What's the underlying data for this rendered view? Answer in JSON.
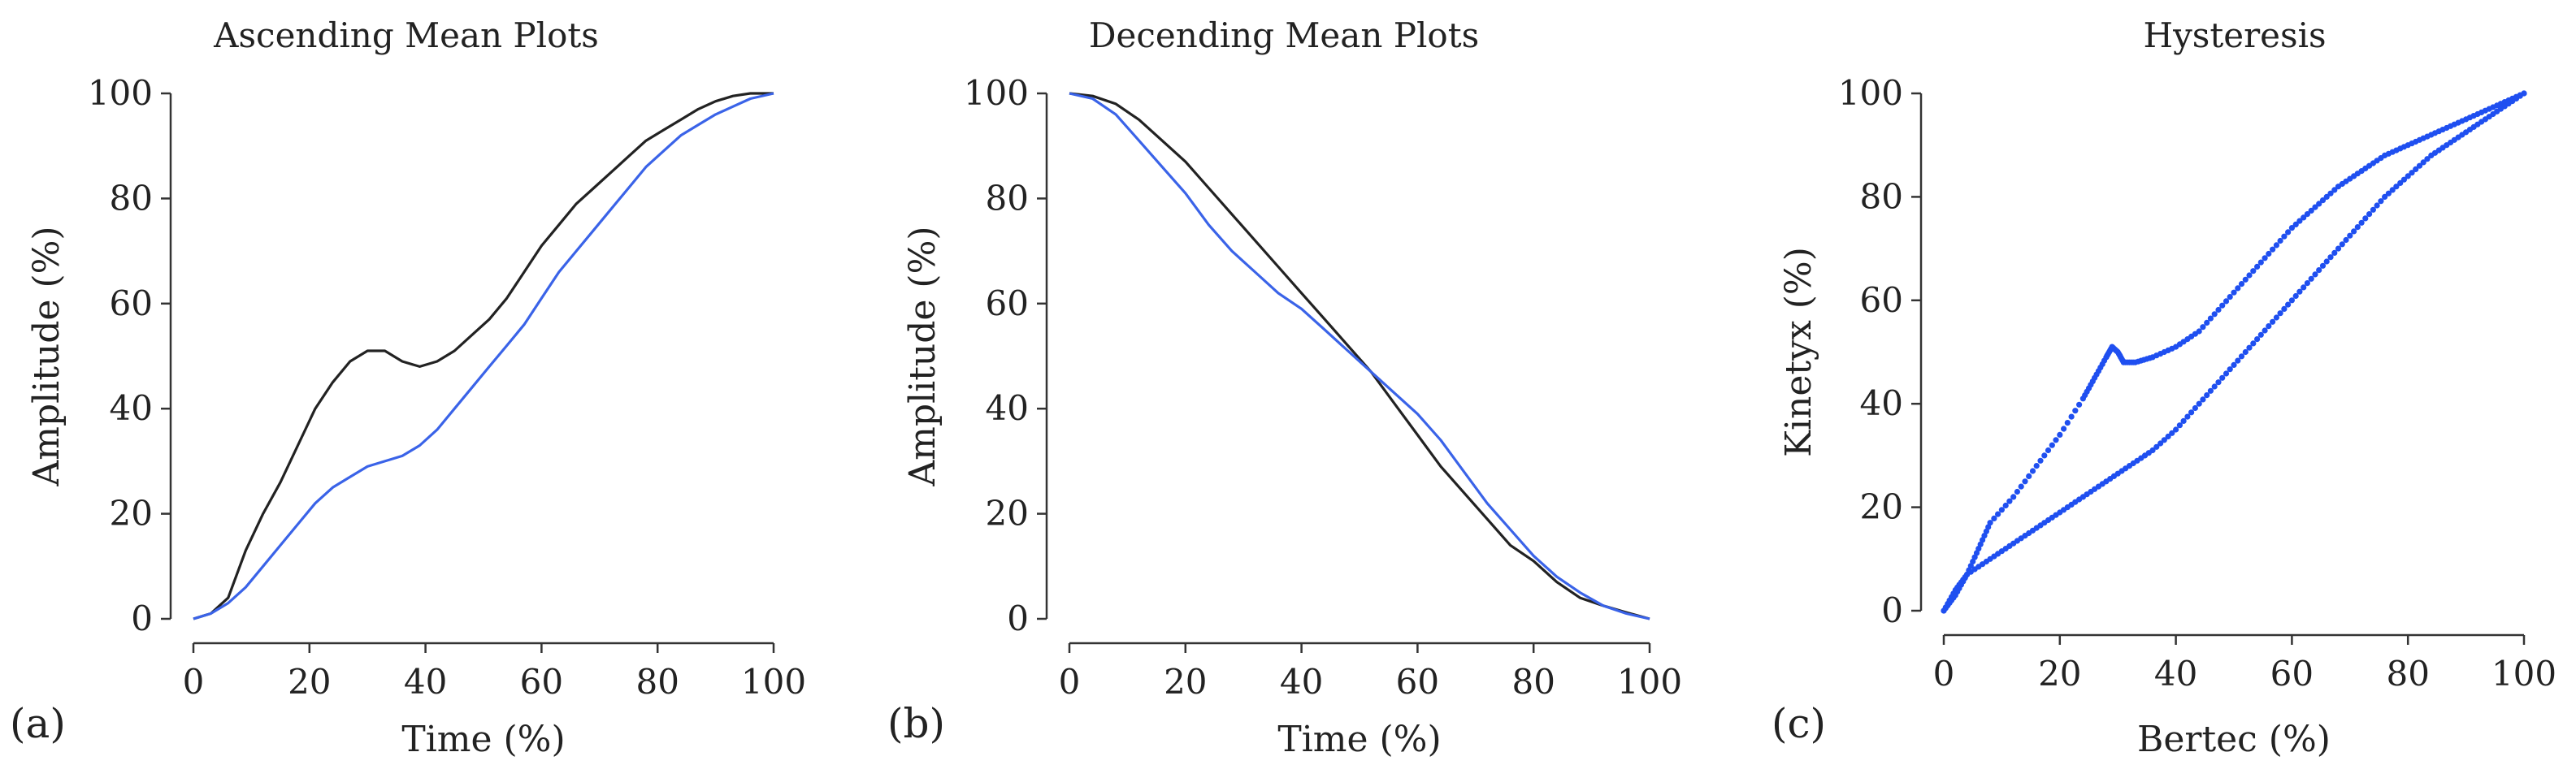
{
  "chart_data": [
    {
      "type": "line",
      "panel_label": "(a)",
      "title": "Ascending Mean Plots",
      "xlabel": "Time (%)",
      "ylabel": "Amplitude (%)",
      "xlim": [
        0,
        100
      ],
      "ylim": [
        0,
        100
      ],
      "xticks": [
        0,
        20,
        40,
        60,
        80,
        100
      ],
      "yticks": [
        0,
        20,
        40,
        60,
        80,
        100
      ],
      "x": [
        0,
        3,
        6,
        9,
        12,
        15,
        18,
        21,
        24,
        27,
        30,
        33,
        36,
        39,
        42,
        45,
        48,
        51,
        54,
        57,
        60,
        63,
        66,
        69,
        72,
        75,
        78,
        81,
        84,
        87,
        90,
        93,
        96,
        100
      ],
      "series": [
        {
          "name": "black",
          "color": "#222222",
          "values": [
            0,
            1,
            4,
            13,
            20,
            26,
            33,
            40,
            45,
            49,
            51,
            51,
            49,
            48,
            49,
            51,
            54,
            57,
            61,
            66,
            71,
            75,
            79,
            82,
            85,
            88,
            91,
            93,
            95,
            97,
            98.5,
            99.5,
            100,
            100
          ]
        },
        {
          "name": "blue",
          "color": "#3a63e8",
          "values": [
            0,
            1,
            3,
            6,
            10,
            14,
            18,
            22,
            25,
            27,
            29,
            30,
            31,
            33,
            36,
            40,
            44,
            48,
            52,
            56,
            61,
            66,
            70,
            74,
            78,
            82,
            86,
            89,
            92,
            94,
            96,
            97.5,
            99,
            100
          ]
        }
      ]
    },
    {
      "type": "line",
      "panel_label": "(b)",
      "title": "Decending Mean Plots",
      "xlabel": "Time (%)",
      "ylabel": "Amplitude (%)",
      "xlim": [
        0,
        100
      ],
      "ylim": [
        0,
        100
      ],
      "xticks": [
        0,
        20,
        40,
        60,
        80,
        100
      ],
      "yticks": [
        0,
        20,
        40,
        60,
        80,
        100
      ],
      "x": [
        0,
        4,
        8,
        12,
        16,
        20,
        24,
        28,
        32,
        36,
        40,
        44,
        48,
        52,
        56,
        60,
        64,
        68,
        72,
        76,
        80,
        84,
        88,
        92,
        96,
        100
      ],
      "series": [
        {
          "name": "black",
          "color": "#222222",
          "values": [
            100,
            99.5,
            98,
            95,
            91,
            87,
            82,
            77,
            72,
            67,
            62,
            57,
            52,
            47,
            41,
            35,
            29,
            24,
            19,
            14,
            11,
            7,
            4,
            2.5,
            1.2,
            0
          ]
        },
        {
          "name": "blue",
          "color": "#3a63e8",
          "values": [
            100,
            99,
            96,
            91,
            86,
            81,
            75,
            70,
            66,
            62,
            59,
            55,
            51,
            47,
            43,
            39,
            34,
            28,
            22,
            17,
            12,
            8,
            5,
            2.5,
            1,
            0
          ]
        }
      ]
    },
    {
      "type": "scatter",
      "panel_label": "(c)",
      "title": "Hysteresis",
      "xlabel": "Bertec (%)",
      "ylabel": "Kinetyx (%)",
      "xlim": [
        0,
        100
      ],
      "ylim": [
        0,
        100
      ],
      "xticks": [
        0,
        20,
        40,
        60,
        80,
        100
      ],
      "yticks": [
        0,
        20,
        40,
        60,
        80,
        100
      ],
      "color": "#1f4ff0",
      "loops": [
        {
          "name": "ascending",
          "x": [
            0,
            2,
            4,
            6,
            8,
            12,
            16,
            20,
            24,
            26,
            28,
            29,
            30,
            31,
            33,
            36,
            40,
            44,
            48,
            52,
            56,
            60,
            64,
            68,
            72,
            76,
            80,
            84,
            88,
            92,
            96,
            100
          ],
          "y": [
            0,
            3,
            7,
            12,
            17,
            22,
            28,
            34,
            41,
            45,
            49,
            51,
            50,
            48,
            48,
            49,
            51,
            54,
            59,
            64,
            69,
            74,
            78,
            82,
            85,
            88,
            90,
            92,
            94,
            96,
            98,
            100
          ]
        },
        {
          "name": "descending",
          "x": [
            100,
            96,
            92,
            88,
            84,
            80,
            76,
            72,
            68,
            64,
            60,
            56,
            52,
            48,
            44,
            40,
            36,
            32,
            28,
            24,
            20,
            16,
            12,
            8,
            4,
            2,
            0
          ],
          "y": [
            100,
            97,
            94,
            91,
            88,
            84,
            80,
            75,
            70,
            65,
            60,
            55,
            50,
            45,
            40,
            35,
            31,
            28,
            25,
            22,
            19,
            16,
            13,
            10,
            7,
            4,
            0
          ]
        }
      ]
    }
  ]
}
